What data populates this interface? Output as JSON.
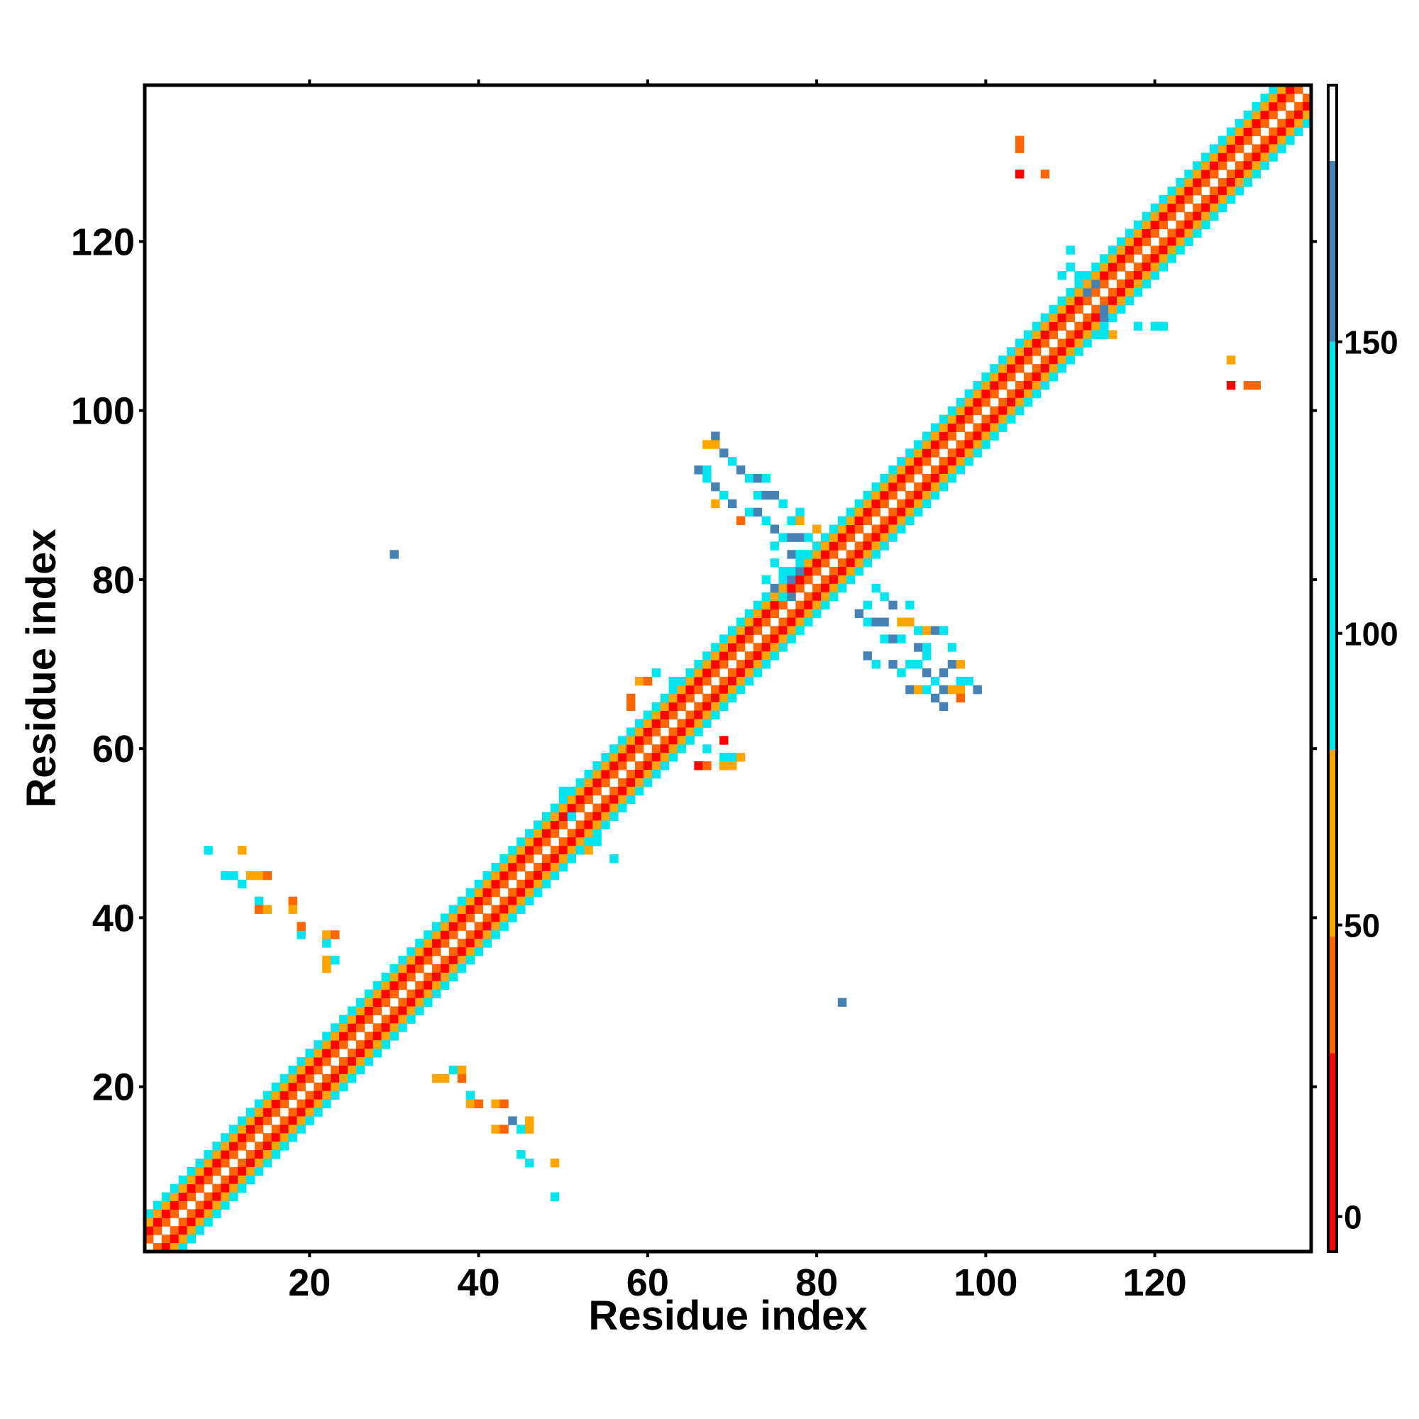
{
  "chart_data": {
    "type": "heatmap",
    "title": "",
    "xlabel": "Residue index",
    "ylabel": "Residue index",
    "xlim": [
      1,
      138
    ],
    "ylim": [
      1,
      138
    ],
    "x_ticks": [
      20,
      40,
      60,
      80,
      100,
      120
    ],
    "y_ticks": [
      20,
      40,
      60,
      80,
      100,
      120
    ],
    "grid": false,
    "legend": "colorbar right",
    "colorbar": {
      "range": [
        -6,
        194
      ],
      "ticks": [
        0,
        50,
        100,
        150
      ],
      "bands": [
        {
          "from": -6,
          "to": 28,
          "color": "#ff0000"
        },
        {
          "from": 28,
          "to": 48,
          "color": "#ff6600"
        },
        {
          "from": 48,
          "to": 80,
          "color": "#ffa500"
        },
        {
          "from": 80,
          "to": 150,
          "color": "#00e5ee"
        },
        {
          "from": 150,
          "to": 181,
          "color": "#4682b4"
        },
        {
          "from": 181,
          "to": 194,
          "color": "#ffffff"
        }
      ]
    },
    "colors": {
      "red": "#ff0000",
      "orange_red": "#ff6600",
      "orange": "#ffa500",
      "cyan": "#00e5ee",
      "steel_blue": "#4682b4"
    },
    "diagonal_band_pattern": [
      {
        "offset": 0,
        "color": "#ffffff"
      },
      {
        "offset": 1,
        "color": "#ff6600"
      },
      {
        "offset": 2,
        "color": "#ff0000"
      },
      {
        "offset": 3,
        "color": "#ffa500"
      },
      {
        "offset": 4,
        "color": "#00e5ee"
      }
    ],
    "diagonal_range": [
      1,
      138
    ],
    "contact_cells": [
      [
        35,
        21,
        "#ffa500"
      ],
      [
        36,
        21,
        "#ffa500"
      ],
      [
        37,
        22,
        "#00e5ee"
      ],
      [
        38,
        22,
        "#ffa500"
      ],
      [
        38,
        21,
        "#ff6600"
      ],
      [
        39,
        19,
        "#00e5ee"
      ],
      [
        39,
        18,
        "#ffa500"
      ],
      [
        40,
        18,
        "#ff6600"
      ],
      [
        42,
        18,
        "#ffa500"
      ],
      [
        43,
        18,
        "#ff6600"
      ],
      [
        42,
        15,
        "#ffa500"
      ],
      [
        43,
        15,
        "#ff6600"
      ],
      [
        44,
        16,
        "#4682b4"
      ],
      [
        45,
        15,
        "#00e5ee"
      ],
      [
        46,
        15,
        "#ffa500"
      ],
      [
        46,
        16,
        "#ffa500"
      ],
      [
        45,
        12,
        "#00e5ee"
      ],
      [
        46,
        11,
        "#00e5ee"
      ],
      [
        49,
        11,
        "#ffa500"
      ],
      [
        49,
        7,
        "#00e5ee"
      ],
      [
        8,
        48,
        "#00e5ee"
      ],
      [
        12,
        48,
        "#ffa500"
      ],
      [
        10,
        45,
        "#00e5ee"
      ],
      [
        11,
        45,
        "#00e5ee"
      ],
      [
        12,
        44,
        "#00e5ee"
      ],
      [
        13,
        45,
        "#ffa500"
      ],
      [
        14,
        45,
        "#ffa500"
      ],
      [
        15,
        45,
        "#ff6600"
      ],
      [
        14,
        42,
        "#00e5ee"
      ],
      [
        14,
        41,
        "#ff6600"
      ],
      [
        15,
        41,
        "#ffa500"
      ],
      [
        18,
        42,
        "#ff6600"
      ],
      [
        18,
        41,
        "#ffa500"
      ],
      [
        19,
        38,
        "#00e5ee"
      ],
      [
        19,
        39,
        "#ff6600"
      ],
      [
        22,
        38,
        "#ffa500"
      ],
      [
        23,
        38,
        "#ff6600"
      ],
      [
        22,
        37,
        "#00e5ee"
      ],
      [
        22,
        35,
        "#ffa500"
      ],
      [
        23,
        35,
        "#00e5ee"
      ],
      [
        22,
        34,
        "#ffa500"
      ],
      [
        30,
        83,
        "#4682b4"
      ],
      [
        83,
        30,
        "#4682b4"
      ],
      [
        104,
        132,
        "#ff6600"
      ],
      [
        104,
        131,
        "#ff6600"
      ],
      [
        104,
        128,
        "#ff0000"
      ],
      [
        107,
        128,
        "#ff6600"
      ],
      [
        129,
        106,
        "#ffa500"
      ],
      [
        129,
        103,
        "#ff0000"
      ],
      [
        131,
        103,
        "#ff6600"
      ],
      [
        132,
        103,
        "#ff6600"
      ],
      [
        68,
        97,
        "#4682b4"
      ],
      [
        67,
        96,
        "#ffa500"
      ],
      [
        68,
        96,
        "#ffa500"
      ],
      [
        69,
        95,
        "#4682b4"
      ],
      [
        70,
        94,
        "#00e5ee"
      ],
      [
        66,
        93,
        "#4682b4"
      ],
      [
        67,
        93,
        "#00e5ee"
      ],
      [
        71,
        93,
        "#4682b4"
      ],
      [
        72,
        92,
        "#00e5ee"
      ],
      [
        73,
        92,
        "#4682b4"
      ],
      [
        74,
        92,
        "#00e5ee"
      ],
      [
        67,
        92,
        "#00e5ee"
      ],
      [
        68,
        91,
        "#4682b4"
      ],
      [
        69,
        90,
        "#00e5ee"
      ],
      [
        73,
        90,
        "#00e5ee"
      ],
      [
        74,
        90,
        "#4682b4"
      ],
      [
        75,
        90,
        "#4682b4"
      ],
      [
        68,
        89,
        "#ffa500"
      ],
      [
        70,
        89,
        "#4682b4"
      ],
      [
        76,
        89,
        "#00e5ee"
      ],
      [
        72,
        88,
        "#00e5ee"
      ],
      [
        73,
        88,
        "#4682b4"
      ],
      [
        78,
        88,
        "#00e5ee"
      ],
      [
        71,
        87,
        "#ff6600"
      ],
      [
        74,
        87,
        "#00e5ee"
      ],
      [
        75,
        86,
        "#4682b4"
      ],
      [
        77,
        87,
        "#00e5ee"
      ],
      [
        78,
        87,
        "#ffa500"
      ],
      [
        76,
        85,
        "#00e5ee"
      ],
      [
        77,
        85,
        "#4682b4"
      ],
      [
        78,
        85,
        "#4682b4"
      ],
      [
        79,
        85,
        "#00e5ee"
      ],
      [
        80,
        86,
        "#ffa500"
      ],
      [
        75,
        84,
        "#00e5ee"
      ],
      [
        77,
        83,
        "#4682b4"
      ],
      [
        78,
        83,
        "#00e5ee"
      ],
      [
        75,
        82,
        "#00e5ee"
      ],
      [
        76,
        81,
        "#00e5ee"
      ],
      [
        77,
        80,
        "#4682b4"
      ],
      [
        78,
        81,
        "#4682b4"
      ],
      [
        74,
        80,
        "#00e5ee"
      ],
      [
        75,
        79,
        "#4682b4"
      ],
      [
        76,
        78,
        "#00e5ee"
      ],
      [
        77,
        78,
        "#4682b4"
      ],
      [
        87,
        79,
        "#00e5ee"
      ],
      [
        88,
        78,
        "#00e5ee"
      ],
      [
        89,
        77,
        "#4682b4"
      ],
      [
        86,
        77,
        "#00e5ee"
      ],
      [
        91,
        77,
        "#00e5ee"
      ],
      [
        85,
        76,
        "#4682b4"
      ],
      [
        86,
        75,
        "#00e5ee"
      ],
      [
        87,
        75,
        "#4682b4"
      ],
      [
        88,
        75,
        "#4682b4"
      ],
      [
        90,
        75,
        "#ffa500"
      ],
      [
        91,
        75,
        "#ffa500"
      ],
      [
        92,
        74,
        "#00e5ee"
      ],
      [
        93,
        74,
        "#ffa500"
      ],
      [
        94,
        74,
        "#4682b4"
      ],
      [
        95,
        74,
        "#00e5ee"
      ],
      [
        88,
        73,
        "#00e5ee"
      ],
      [
        89,
        73,
        "#4682b4"
      ],
      [
        90,
        73,
        "#00e5ee"
      ],
      [
        92,
        72,
        "#4682b4"
      ],
      [
        93,
        72,
        "#00e5ee"
      ],
      [
        96,
        72,
        "#00e5ee"
      ],
      [
        86,
        71,
        "#4682b4"
      ],
      [
        87,
        70,
        "#00e5ee"
      ],
      [
        89,
        70,
        "#4682b4"
      ],
      [
        91,
        70,
        "#00e5ee"
      ],
      [
        92,
        70,
        "#00e5ee"
      ],
      [
        93,
        71,
        "#00e5ee"
      ],
      [
        96,
        70,
        "#4682b4"
      ],
      [
        97,
        70,
        "#ffa500"
      ],
      [
        90,
        69,
        "#00e5ee"
      ],
      [
        93,
        69,
        "#4682b4"
      ],
      [
        94,
        68,
        "#00e5ee"
      ],
      [
        95,
        69,
        "#4682b4"
      ],
      [
        97,
        68,
        "#00e5ee"
      ],
      [
        98,
        68,
        "#00e5ee"
      ],
      [
        91,
        67,
        "#4682b4"
      ],
      [
        92,
        67,
        "#ffa500"
      ],
      [
        93,
        67,
        "#00e5ee"
      ],
      [
        95,
        67,
        "#4682b4"
      ],
      [
        96,
        67,
        "#ffa500"
      ],
      [
        97,
        67,
        "#ffa500"
      ],
      [
        99,
        67,
        "#4682b4"
      ],
      [
        94,
        66,
        "#4682b4"
      ],
      [
        97,
        66,
        "#ff6600"
      ],
      [
        95,
        65,
        "#4682b4"
      ],
      [
        59,
        68,
        "#ffa500"
      ],
      [
        60,
        68,
        "#ff6600"
      ],
      [
        61,
        69,
        "#00e5ee"
      ],
      [
        63,
        68,
        "#00e5ee"
      ],
      [
        58,
        66,
        "#ff6600"
      ],
      [
        58,
        65,
        "#ff6600"
      ],
      [
        67,
        60,
        "#00e5ee"
      ],
      [
        69,
        61,
        "#ff0000"
      ],
      [
        69,
        59,
        "#00e5ee"
      ],
      [
        70,
        59,
        "#00e5ee"
      ],
      [
        66,
        58,
        "#ff0000"
      ],
      [
        67,
        58,
        "#ff6600"
      ],
      [
        69,
        58,
        "#ffa500"
      ],
      [
        70,
        58,
        "#ffa500"
      ],
      [
        71,
        59,
        "#ffa500"
      ],
      [
        50,
        55,
        "#00e5ee"
      ],
      [
        51,
        52,
        "#00e5ee"
      ],
      [
        56,
        47,
        "#00e5ee"
      ],
      [
        53,
        48,
        "#ffa500"
      ],
      [
        54,
        49,
        "#00e5ee"
      ],
      [
        120,
        110,
        "#00e5ee"
      ],
      [
        121,
        110,
        "#00e5ee"
      ],
      [
        118,
        110,
        "#00e5ee"
      ],
      [
        115,
        109,
        "#ffa500"
      ],
      [
        114,
        109,
        "#00e5ee"
      ],
      [
        113,
        109,
        "#00e5ee"
      ],
      [
        110,
        119,
        "#00e5ee"
      ],
      [
        109,
        116,
        "#00e5ee"
      ],
      [
        110,
        117,
        "#00e5ee"
      ],
      [
        111,
        116,
        "#00e5ee"
      ],
      [
        113,
        115,
        "#4682b4"
      ],
      [
        112,
        114,
        "#4682b4"
      ],
      [
        110,
        114,
        "#00e5ee"
      ],
      [
        114,
        112,
        "#4682b4"
      ],
      [
        115,
        111,
        "#00e5ee"
      ],
      [
        114,
        111,
        "#4682b4"
      ],
      [
        116,
        112,
        "#00e5ee"
      ]
    ]
  }
}
